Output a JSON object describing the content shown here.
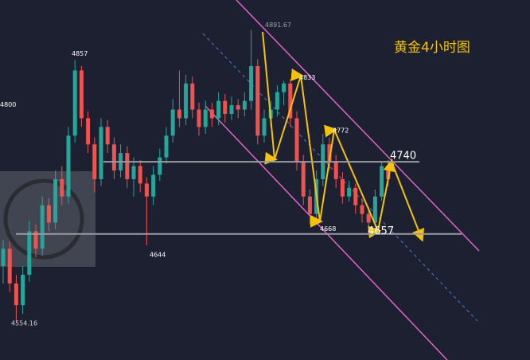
{
  "chart_data": {
    "type": "candlestick",
    "title": "黄金4小时图",
    "ylim": [
      4512,
      4926
    ],
    "up_color": "#26a69a",
    "down_color": "#ef5350",
    "open": [
      4620,
      4640,
      4600,
      4575,
      4610,
      4660,
      4640,
      4690,
      4670,
      4720,
      4700,
      4770,
      4845,
      4790,
      4760,
      4720,
      4780,
      4760,
      4730,
      4750,
      4720,
      4735,
      4715,
      4700,
      4725,
      4745,
      4770,
      4800,
      4790,
      4830,
      4800,
      4780,
      4800,
      4790,
      4810,
      4795,
      4805,
      4800,
      4810,
      4850,
      4770,
      4790,
      4800,
      4820,
      4830,
      4790,
      4740,
      4700,
      4680,
      4720,
      4760,
      4740,
      4720,
      4700,
      4710,
      4690,
      4680,
      4670,
      4700,
      4735
    ],
    "high": [
      4650,
      4648,
      4610,
      4620,
      4672,
      4668,
      4700,
      4698,
      4730,
      4735,
      4780,
      4857,
      4850,
      4798,
      4768,
      4790,
      4788,
      4768,
      4760,
      4758,
      4745,
      4742,
      4722,
      4735,
      4755,
      4780,
      4812,
      4845,
      4840,
      4838,
      4808,
      4810,
      4808,
      4820,
      4818,
      4815,
      4812,
      4820,
      4891.67,
      4858,
      4800,
      4810,
      4828,
      4833,
      4835,
      4798,
      4748,
      4708,
      4730,
      4772,
      4768,
      4748,
      4728,
      4718,
      4715,
      4698,
      4688,
      4708,
      4740,
      4742
    ],
    "low": [
      4600,
      4590,
      4554.16,
      4565,
      4602,
      4630,
      4632,
      4660,
      4662,
      4690,
      4692,
      4762,
      4780,
      4750,
      4705,
      4712,
      4750,
      4720,
      4722,
      4710,
      4700,
      4705,
      4644,
      4690,
      4718,
      4738,
      4762,
      4780,
      4782,
      4790,
      4770,
      4772,
      4780,
      4782,
      4785,
      4788,
      4790,
      4792,
      4800,
      4760,
      4762,
      4780,
      4792,
      4805,
      4780,
      4730,
      4690,
      4668,
      4672,
      4712,
      4730,
      4710,
      4692,
      4694,
      4680,
      4670,
      4657,
      4665,
      4695,
      4712
    ],
    "close": [
      4640,
      4600,
      4575,
      4610,
      4660,
      4640,
      4690,
      4670,
      4720,
      4700,
      4770,
      4845,
      4790,
      4760,
      4720,
      4780,
      4760,
      4730,
      4750,
      4720,
      4735,
      4715,
      4700,
      4725,
      4745,
      4770,
      4800,
      4790,
      4830,
      4800,
      4780,
      4800,
      4790,
      4810,
      4795,
      4805,
      4800,
      4810,
      4850,
      4770,
      4790,
      4800,
      4820,
      4830,
      4790,
      4740,
      4700,
      4680,
      4720,
      4760,
      4740,
      4720,
      4700,
      4710,
      4690,
      4680,
      4670,
      4700,
      4735,
      4720
    ],
    "price_labels": [
      4891.67,
      4857,
      4800,
      4554.16,
      4644,
      4833,
      4772,
      4668
    ],
    "levels": [
      4740,
      4657
    ]
  }
}
